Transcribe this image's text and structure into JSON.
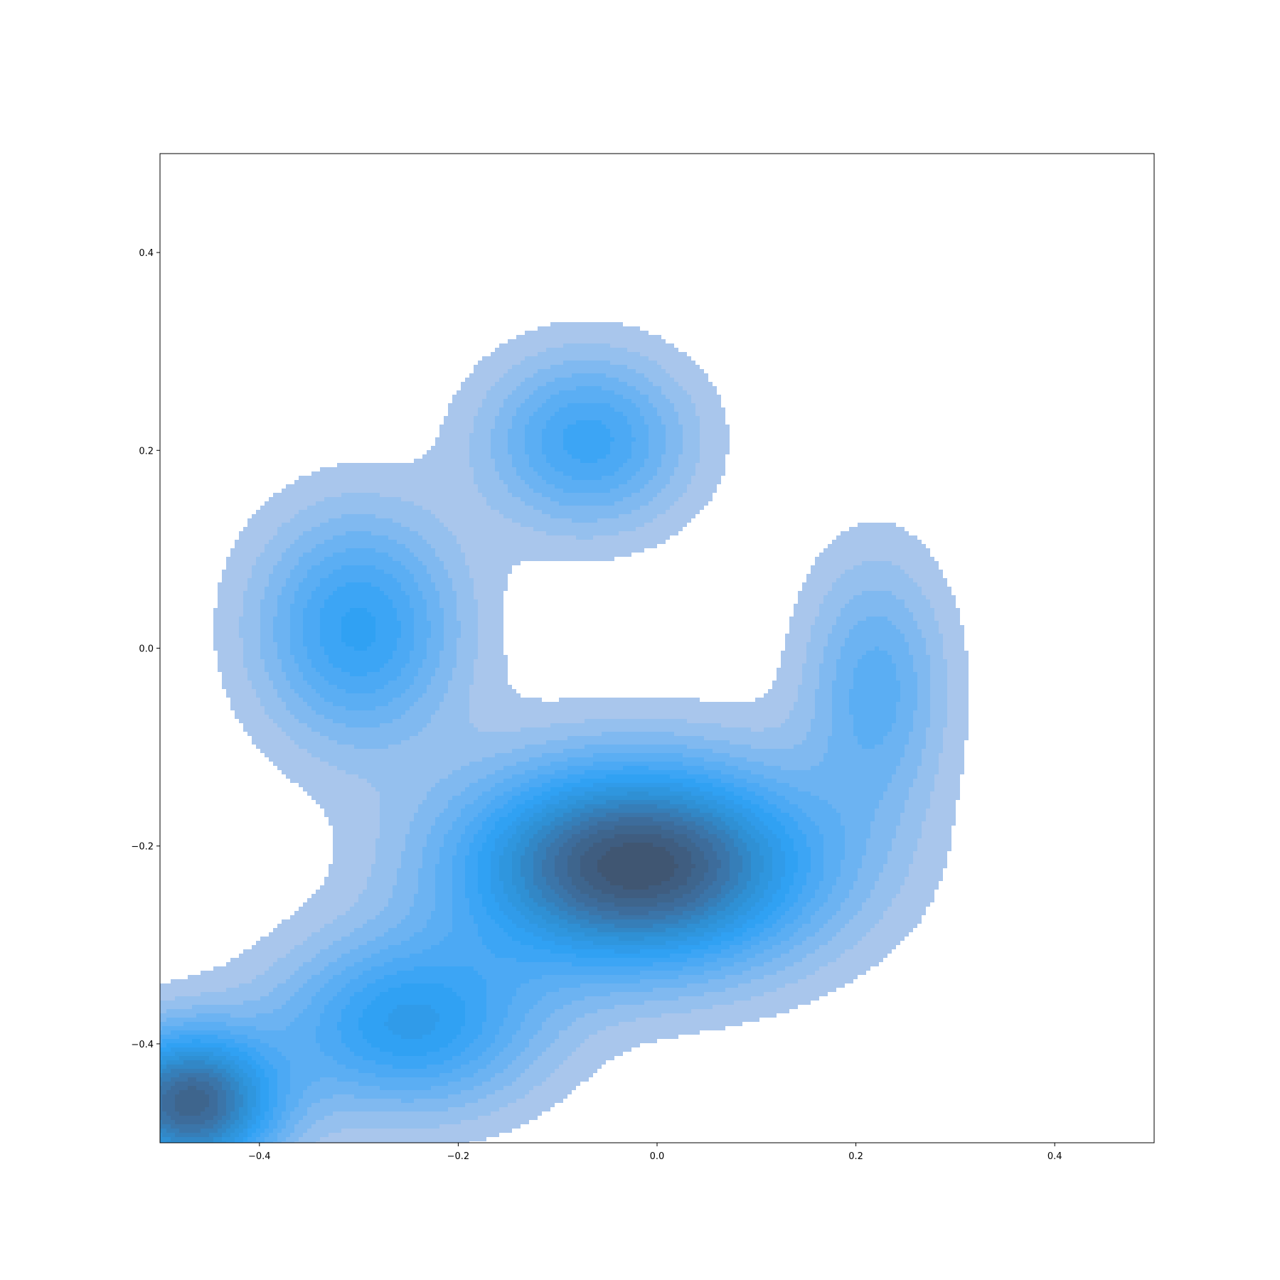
{
  "chart_data": {
    "type": "kde-filled-contour",
    "title": "",
    "xlabel": "",
    "ylabel": "",
    "xlim": [
      -0.5,
      0.5
    ],
    "ylim": [
      -0.5,
      0.5
    ],
    "xticks": [
      -0.4,
      -0.2,
      0.0,
      0.2,
      0.4
    ],
    "yticks": [
      -0.4,
      -0.2,
      0.0,
      0.2,
      0.4
    ],
    "xtick_labels": [
      "−0.4",
      "−0.2",
      "0.0",
      "0.2",
      "0.4"
    ],
    "ytick_labels": [
      "−0.4",
      "−0.2",
      "0.0",
      "0.2",
      "0.4"
    ],
    "grid": false,
    "legend": "none",
    "colormap": [
      "#a9c6ec",
      "#64b0f3",
      "#30a2f5",
      "#2f8fd2",
      "#3d6fa0",
      "#405672"
    ],
    "density_components": [
      {
        "x": -0.47,
        "y": -0.46,
        "sx": 0.06,
        "sy": 0.05,
        "w": 1.0
      },
      {
        "x": -0.02,
        "y": -0.22,
        "sx": 0.12,
        "sy": 0.07,
        "w": 1.15
      },
      {
        "x": -0.3,
        "y": 0.02,
        "sx": 0.07,
        "sy": 0.08,
        "w": 0.5
      },
      {
        "x": -0.07,
        "y": 0.21,
        "sx": 0.07,
        "sy": 0.06,
        "w": 0.45
      },
      {
        "x": 0.22,
        "y": -0.04,
        "sx": 0.05,
        "sy": 0.09,
        "w": 0.33
      },
      {
        "x": -0.25,
        "y": -0.38,
        "sx": 0.09,
        "sy": 0.06,
        "w": 0.55
      }
    ]
  }
}
